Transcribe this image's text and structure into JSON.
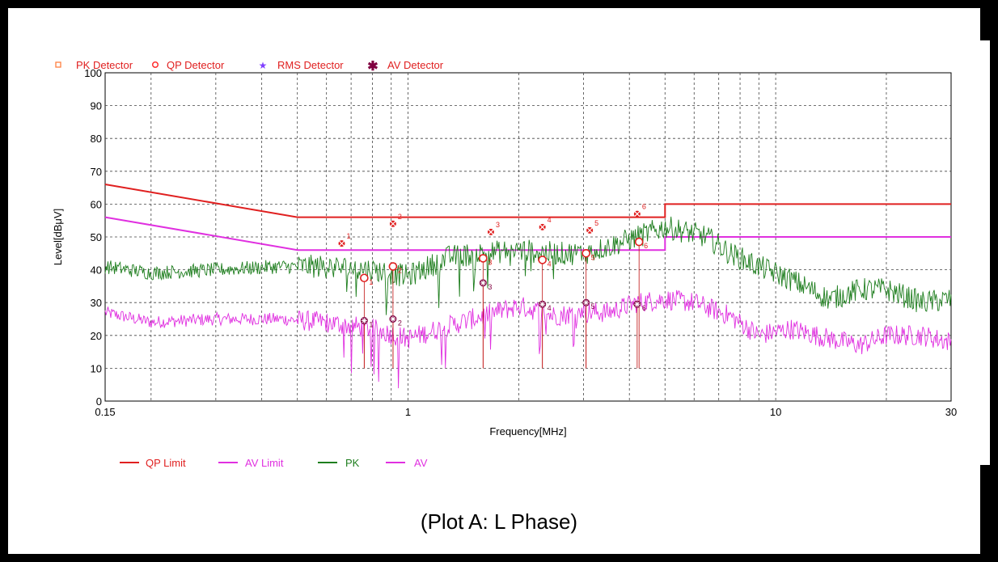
{
  "caption": "(Plot A: L Phase)",
  "chart_data": {
    "type": "line",
    "xlabel": "Frequency[MHz]",
    "ylabel": "Level[dBμV]",
    "x_scale": "log",
    "xlim": [
      0.15,
      30
    ],
    "ylim": [
      0,
      100
    ],
    "x_ticks": [
      {
        "value": 0.15,
        "label": "0.15"
      },
      {
        "value": 1,
        "label": "1"
      },
      {
        "value": 10,
        "label": "10"
      },
      {
        "value": 30,
        "label": "30"
      }
    ],
    "y_ticks": [
      0,
      10,
      20,
      30,
      40,
      50,
      60,
      70,
      80,
      90,
      100
    ],
    "grid": true,
    "detector_legend": [
      {
        "label": "PK Detector",
        "marker": "square",
        "color": "#ff8040"
      },
      {
        "label": "QP Detector",
        "marker": "circle",
        "color": "#ff3030"
      },
      {
        "label": "RMS Detector",
        "marker": "star",
        "color": "#8040ff"
      },
      {
        "label": "AV Detector",
        "marker": "asterisk",
        "color": "#800040"
      }
    ],
    "series_legend": [
      {
        "label": "QP Limit",
        "color": "#e02020"
      },
      {
        "label": "AV Limit",
        "color": "#e030e0"
      },
      {
        "label": "PK",
        "color": "#1e7e1e"
      },
      {
        "label": "AV",
        "color": "#e030e0"
      }
    ],
    "qp_limit": {
      "x": [
        0.15,
        0.5,
        0.5,
        5,
        5,
        30
      ],
      "y": [
        66,
        56,
        56,
        56,
        60,
        60
      ]
    },
    "av_limit": {
      "x": [
        0.15,
        0.5,
        0.5,
        5,
        5,
        30
      ],
      "y": [
        56,
        46,
        46,
        46,
        50,
        50
      ]
    },
    "pk_envelope": {
      "x": [
        0.15,
        0.2,
        0.3,
        0.45,
        0.6,
        0.8,
        1.0,
        1.3,
        1.6,
        2.0,
        2.5,
        3.0,
        3.5,
        4.2,
        5.0,
        5.5,
        6.5,
        7.5,
        9,
        11,
        14,
        17,
        20,
        25,
        30
      ],
      "y": [
        41,
        39,
        40,
        41,
        41,
        40,
        38,
        44,
        45,
        46,
        45,
        45,
        47,
        50,
        53,
        52,
        50,
        45,
        41,
        37,
        31,
        34,
        34,
        30,
        31
      ]
    },
    "av_envelope": {
      "x": [
        0.15,
        0.2,
        0.3,
        0.45,
        0.6,
        0.8,
        1.0,
        1.3,
        1.6,
        2.0,
        2.5,
        3.0,
        3.5,
        4.2,
        5.0,
        6.0,
        7.5,
        9,
        11,
        14,
        17,
        20,
        25,
        30
      ],
      "y": [
        27,
        24,
        25,
        25,
        24,
        22,
        19,
        23,
        26,
        29,
        26,
        27,
        27,
        30,
        31,
        30,
        26,
        20,
        22,
        19,
        17,
        20,
        20,
        18
      ]
    },
    "pk_markers": [
      {
        "id": "1",
        "x": 0.66,
        "y": 48
      },
      {
        "id": "2",
        "x": 0.91,
        "y": 54
      },
      {
        "id": "3",
        "x": 1.68,
        "y": 51.5
      },
      {
        "id": "4",
        "x": 2.32,
        "y": 53
      },
      {
        "id": "5",
        "x": 3.12,
        "y": 52
      },
      {
        "id": "6",
        "x": 4.2,
        "y": 57
      }
    ],
    "qp_markers": [
      {
        "id": "1",
        "x": 0.76,
        "y": 37.5
      },
      {
        "id": "2",
        "x": 0.91,
        "y": 41
      },
      {
        "id": "3",
        "x": 1.6,
        "y": 43.5
      },
      {
        "id": "4",
        "x": 2.32,
        "y": 43
      },
      {
        "id": "5",
        "x": 3.05,
        "y": 45
      },
      {
        "id": "6",
        "x": 4.25,
        "y": 48.5
      }
    ],
    "av_markers": [
      {
        "id": "1",
        "x": 0.76,
        "y": 24.5
      },
      {
        "id": "2",
        "x": 0.91,
        "y": 25
      },
      {
        "id": "3",
        "x": 1.6,
        "y": 36
      },
      {
        "id": "4",
        "x": 2.32,
        "y": 29.5
      },
      {
        "id": "5",
        "x": 3.05,
        "y": 30
      },
      {
        "id": "6",
        "x": 4.2,
        "y": 29.5
      }
    ]
  }
}
